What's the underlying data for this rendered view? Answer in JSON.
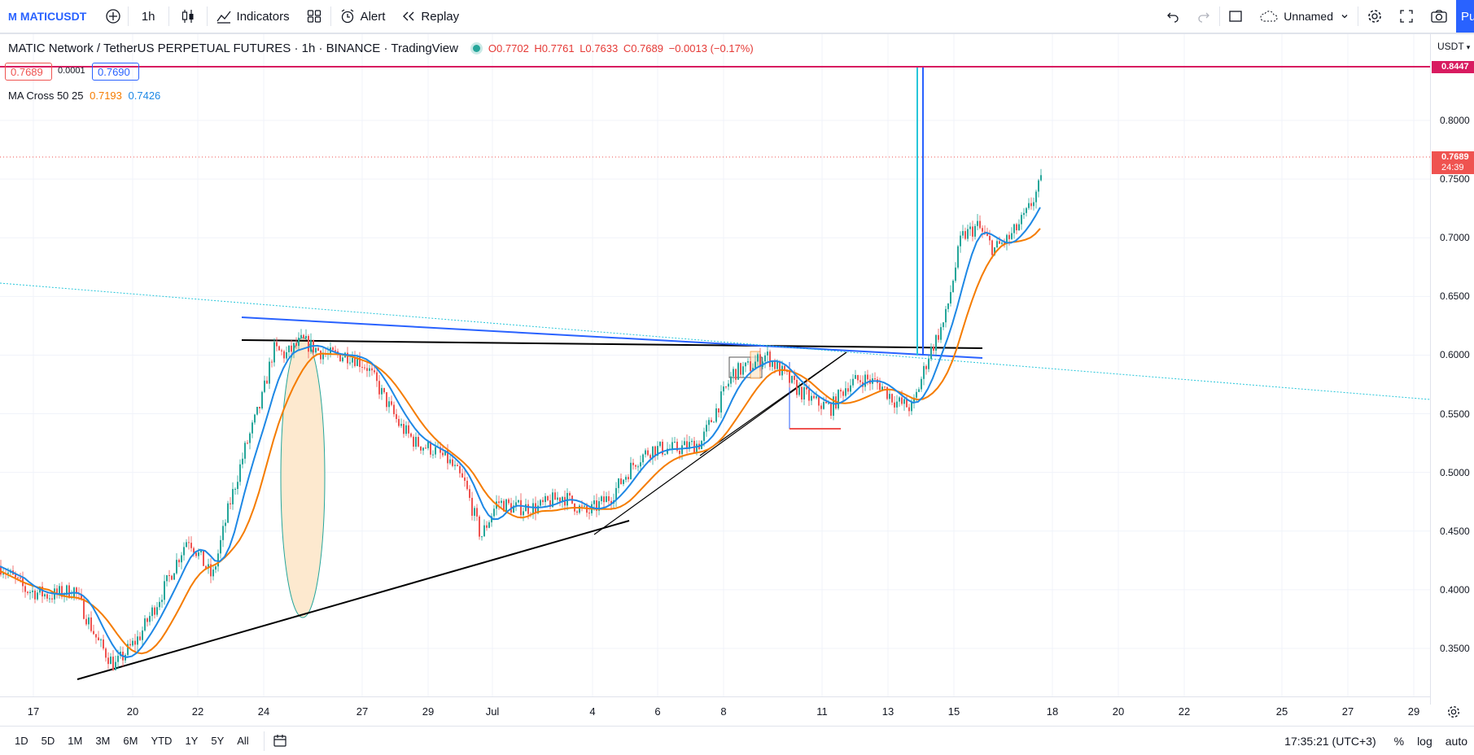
{
  "toolbar": {
    "symbol": "MATICUSDT",
    "interval": "1h",
    "indicators_label": "Indicators",
    "alert_label": "Alert",
    "replay_label": "Replay",
    "layout_name": "Unnamed",
    "publish_label": "Publish"
  },
  "legend": {
    "title": "MATIC Network / TetherUS PERPETUAL FUTURES · 1h · BINANCE · TradingView",
    "open": "O0.7702",
    "high": "H0.7761",
    "low": "L0.7633",
    "close": "C0.7689",
    "change": "−0.0013 (−0.17%)",
    "bid": "0.7689",
    "spread": "0.0001",
    "ask": "0.7690"
  },
  "indicator": {
    "name": "MA Cross 50 25",
    "v1": "0.7193",
    "v2": "0.7426",
    "color1": "#f57c00",
    "color2": "#1e88e5"
  },
  "price_axis": {
    "currency": "USDT",
    "ticks": [
      "0.8000",
      "0.7500",
      "0.7000",
      "0.6500",
      "0.6000",
      "0.5500",
      "0.5000",
      "0.4500",
      "0.4000",
      "0.3500"
    ],
    "alert_price": "0.8447",
    "last_price": "0.7689",
    "countdown": "24:39"
  },
  "time_axis": {
    "ticks": [
      "17",
      "20",
      "22",
      "24",
      "27",
      "29",
      "Jul",
      "4",
      "6",
      "8",
      "11",
      "13",
      "15",
      "18",
      "20",
      "22",
      "25",
      "27",
      "29"
    ]
  },
  "bottombar": {
    "ranges": [
      "1D",
      "5D",
      "1M",
      "3M",
      "6M",
      "YTD",
      "1Y",
      "5Y",
      "All"
    ],
    "clock": "17:35:21 (UTC+3)",
    "percent": "%",
    "log": "log",
    "auto": "auto"
  },
  "colors": {
    "up": "#26a69a",
    "down": "#ef5350",
    "accent": "#2962ff",
    "alert_line": "#d81b60",
    "fast_ma": "#1e88e5",
    "slow_ma": "#f57c00"
  }
}
